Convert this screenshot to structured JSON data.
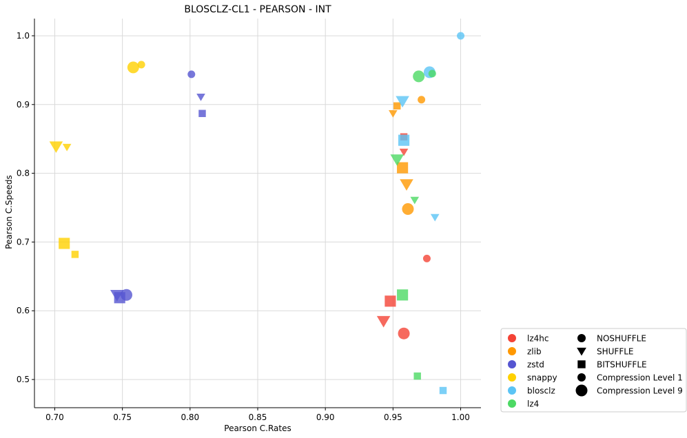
{
  "chart_data": {
    "type": "scatter",
    "title": "BLOSCLZ-CL1 - PEARSON - INT",
    "xlabel": "Pearson C.Rates",
    "ylabel": "Pearson C.Speeds",
    "xlim": [
      0.685,
      1.015
    ],
    "ylim": [
      0.459,
      1.025
    ],
    "xticks": [
      "0.70",
      "0.75",
      "0.80",
      "0.85",
      "0.90",
      "0.95",
      "1.00"
    ],
    "yticks": [
      "0.5",
      "0.6",
      "0.7",
      "0.8",
      "0.9",
      "1.0"
    ],
    "grid": true,
    "legend_position": "bottom-right",
    "codecs": [
      {
        "name": "lz4hc",
        "color": "#f44336"
      },
      {
        "name": "zlib",
        "color": "#ff9800"
      },
      {
        "name": "zstd",
        "color": "#5555d1"
      },
      {
        "name": "snappy",
        "color": "#ffd100"
      },
      {
        "name": "blosclz",
        "color": "#5bc4f5"
      },
      {
        "name": "lz4",
        "color": "#4cd964"
      }
    ],
    "shapes": [
      {
        "name": "NOSHUFFLE",
        "marker": "circle"
      },
      {
        "name": "SHUFFLE",
        "marker": "triangle-down"
      },
      {
        "name": "BITSHUFFLE",
        "marker": "square"
      }
    ],
    "levels": [
      {
        "name": "Compression Level 1",
        "size": "small"
      },
      {
        "name": "Compression Level 9",
        "size": "large"
      }
    ],
    "points": [
      {
        "codec": "lz4hc",
        "shuffle": "NOSHUFFLE",
        "level": 1,
        "x": 0.975,
        "y": 0.676
      },
      {
        "codec": "lz4hc",
        "shuffle": "NOSHUFFLE",
        "level": 9,
        "x": 0.958,
        "y": 0.567
      },
      {
        "codec": "lz4hc",
        "shuffle": "SHUFFLE",
        "level": 1,
        "x": 0.958,
        "y": 0.831
      },
      {
        "codec": "lz4hc",
        "shuffle": "SHUFFLE",
        "level": 9,
        "x": 0.943,
        "y": 0.585
      },
      {
        "codec": "lz4hc",
        "shuffle": "BITSHUFFLE",
        "level": 1,
        "x": 0.958,
        "y": 0.853
      },
      {
        "codec": "lz4hc",
        "shuffle": "BITSHUFFLE",
        "level": 9,
        "x": 0.948,
        "y": 0.614
      },
      {
        "codec": "zlib",
        "shuffle": "NOSHUFFLE",
        "level": 1,
        "x": 0.971,
        "y": 0.907
      },
      {
        "codec": "zlib",
        "shuffle": "NOSHUFFLE",
        "level": 9,
        "x": 0.961,
        "y": 0.748
      },
      {
        "codec": "zlib",
        "shuffle": "SHUFFLE",
        "level": 1,
        "x": 0.95,
        "y": 0.887
      },
      {
        "codec": "zlib",
        "shuffle": "SHUFFLE",
        "level": 9,
        "x": 0.96,
        "y": 0.784
      },
      {
        "codec": "zlib",
        "shuffle": "BITSHUFFLE",
        "level": 1,
        "x": 0.953,
        "y": 0.898
      },
      {
        "codec": "zlib",
        "shuffle": "BITSHUFFLE",
        "level": 9,
        "x": 0.957,
        "y": 0.808
      },
      {
        "codec": "zstd",
        "shuffle": "NOSHUFFLE",
        "level": 1,
        "x": 0.801,
        "y": 0.944
      },
      {
        "codec": "zstd",
        "shuffle": "NOSHUFFLE",
        "level": 9,
        "x": 0.753,
        "y": 0.623
      },
      {
        "codec": "zstd",
        "shuffle": "SHUFFLE",
        "level": 1,
        "x": 0.808,
        "y": 0.911
      },
      {
        "codec": "zstd",
        "shuffle": "SHUFFLE",
        "level": 9,
        "x": 0.746,
        "y": 0.623
      },
      {
        "codec": "zstd",
        "shuffle": "BITSHUFFLE",
        "level": 1,
        "x": 0.809,
        "y": 0.887
      },
      {
        "codec": "zstd",
        "shuffle": "BITSHUFFLE",
        "level": 9,
        "x": 0.748,
        "y": 0.619
      },
      {
        "codec": "snappy",
        "shuffle": "NOSHUFFLE",
        "level": 1,
        "x": 0.764,
        "y": 0.958
      },
      {
        "codec": "snappy",
        "shuffle": "NOSHUFFLE",
        "level": 9,
        "x": 0.758,
        "y": 0.954
      },
      {
        "codec": "snappy",
        "shuffle": "SHUFFLE",
        "level": 1,
        "x": 0.709,
        "y": 0.838
      },
      {
        "codec": "snappy",
        "shuffle": "SHUFFLE",
        "level": 9,
        "x": 0.701,
        "y": 0.839
      },
      {
        "codec": "snappy",
        "shuffle": "BITSHUFFLE",
        "level": 1,
        "x": 0.715,
        "y": 0.682
      },
      {
        "codec": "snappy",
        "shuffle": "BITSHUFFLE",
        "level": 9,
        "x": 0.707,
        "y": 0.698
      },
      {
        "codec": "blosclz",
        "shuffle": "NOSHUFFLE",
        "level": 1,
        "x": 1.0,
        "y": 1.0
      },
      {
        "codec": "blosclz",
        "shuffle": "NOSHUFFLE",
        "level": 9,
        "x": 0.977,
        "y": 0.947
      },
      {
        "codec": "blosclz",
        "shuffle": "SHUFFLE",
        "level": 1,
        "x": 0.981,
        "y": 0.736
      },
      {
        "codec": "blosclz",
        "shuffle": "SHUFFLE",
        "level": 9,
        "x": 0.957,
        "y": 0.905
      },
      {
        "codec": "blosclz",
        "shuffle": "BITSHUFFLE",
        "level": 1,
        "x": 0.987,
        "y": 0.484
      },
      {
        "codec": "blosclz",
        "shuffle": "BITSHUFFLE",
        "level": 9,
        "x": 0.958,
        "y": 0.848
      },
      {
        "codec": "lz4",
        "shuffle": "NOSHUFFLE",
        "level": 1,
        "x": 0.979,
        "y": 0.945
      },
      {
        "codec": "lz4",
        "shuffle": "NOSHUFFLE",
        "level": 9,
        "x": 0.969,
        "y": 0.941
      },
      {
        "codec": "lz4",
        "shuffle": "SHUFFLE",
        "level": 1,
        "x": 0.966,
        "y": 0.761
      },
      {
        "codec": "lz4",
        "shuffle": "SHUFFLE",
        "level": 9,
        "x": 0.953,
        "y": 0.82
      },
      {
        "codec": "lz4",
        "shuffle": "BITSHUFFLE",
        "level": 1,
        "x": 0.968,
        "y": 0.505
      },
      {
        "codec": "lz4",
        "shuffle": "BITSHUFFLE",
        "level": 9,
        "x": 0.957,
        "y": 0.623
      }
    ]
  }
}
